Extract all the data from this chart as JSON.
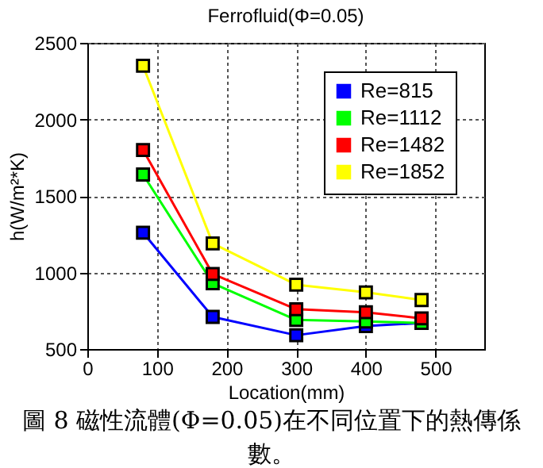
{
  "chart_data": {
    "type": "line",
    "title": "Ferrofluid(Φ=0.05)",
    "xlabel": "Location(mm)",
    "ylabel": "h(W/m²*K)",
    "x": [
      80,
      180,
      300,
      400,
      480
    ],
    "series": [
      {
        "name": "Re=815",
        "color": "#0000ff",
        "values": [
          1260,
          710,
          590,
          650,
          670
        ]
      },
      {
        "name": "Re=1112",
        "color": "#00ff00",
        "values": [
          1640,
          930,
          690,
          680,
          670
        ]
      },
      {
        "name": "Re=1482",
        "color": "#ff0000",
        "values": [
          1800,
          990,
          760,
          740,
          700
        ]
      },
      {
        "name": "Re=1852",
        "color": "#ffff00",
        "values": [
          2350,
          1190,
          920,
          870,
          820
        ]
      }
    ],
    "xlim": [
      0,
      570
    ],
    "xticks": [
      0,
      100,
      200,
      300,
      400,
      500
    ],
    "ylim": [
      500,
      2500
    ],
    "yticks": [
      500,
      1000,
      1500,
      2000,
      2500
    ],
    "grid": true,
    "legend": "top right",
    "marker": "square",
    "line_style": "solid",
    "annotations": [
      "圖 8 磁性流體(Φ=0.05)在不同位置下的熱傳係數。"
    ]
  }
}
